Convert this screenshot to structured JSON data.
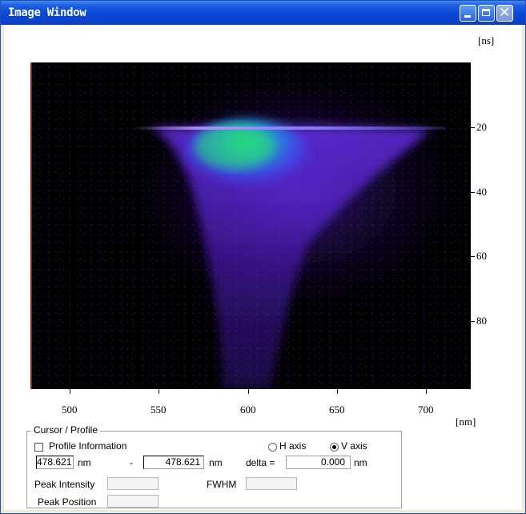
{
  "window": {
    "title": "Image Window"
  },
  "plot": {
    "y_unit": "[ns]",
    "x_unit": "[nm]",
    "x_ticks": [
      "500",
      "550",
      "600",
      "650",
      "700"
    ],
    "y_ticks": [
      "20",
      "40",
      "60",
      "80"
    ],
    "colors": {
      "background": "#000000",
      "low": "#5a1fd0",
      "mid": "#2f5bff",
      "high": "#20e070"
    }
  },
  "cursor_profile": {
    "group_title": "Cursor / Profile",
    "profile_information_label": "Profile Information",
    "profile_information_checked": false,
    "h_axis_label": "H axis",
    "v_axis_label": "V axis",
    "selected_axis": "V axis",
    "from_value": "478.621",
    "from_unit": "nm",
    "dash": "-",
    "to_value": "478.621",
    "to_unit": "nm",
    "delta_label": "delta =",
    "delta_value": "0.000",
    "delta_unit": "nm",
    "peak_intensity_label": "Peak Intensity",
    "peak_intensity_value": "",
    "fwhm_label": "FWHM",
    "fwhm_value": "",
    "peak_position_label": "Peak Position",
    "peak_position_value": ""
  }
}
